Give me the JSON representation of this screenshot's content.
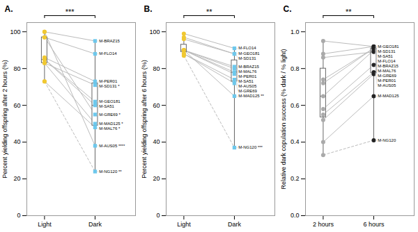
{
  "chart_data": [
    {
      "type": "paired",
      "title": "A.",
      "ylabel": "Percent yielding offspring after 2 hours (%)",
      "categories": [
        "Light",
        "Dark"
      ],
      "colors": [
        "#F0C832",
        "#6DC8EC"
      ],
      "markers": [
        "circle",
        "square"
      ],
      "ylim": [
        0,
        105
      ],
      "yticks": [
        0,
        20,
        40,
        60,
        80,
        100
      ],
      "grid": false,
      "series": [
        {
          "name": "M-BRAZ15",
          "values": [
            100,
            95
          ],
          "color": "#BBBBBB",
          "line_style": "solid"
        },
        {
          "name": "M-FLO14",
          "values": [
            97,
            88
          ],
          "color": "#BBBBBB",
          "line_style": "solid"
        },
        {
          "name": "M-PER01",
          "values": [
            86,
            73
          ],
          "color": "#BBBBBB",
          "line_style": "solid"
        },
        {
          "name": "M-SD131",
          "values": [
            83,
            71
          ],
          "color": "#BBBBBB",
          "line_style": "solid",
          "annotation": "*"
        },
        {
          "name": "M-GEO181",
          "values": [
            85,
            62
          ],
          "color": "#BBBBBB",
          "line_style": "solid"
        },
        {
          "name": "M-SA51",
          "values": [
            85,
            60
          ],
          "color": "#BBBBBB",
          "line_style": "solid"
        },
        {
          "name": "M-GRE69",
          "values": [
            97,
            55
          ],
          "color": "#BBBBBB",
          "line_style": "solid",
          "annotation": "*"
        },
        {
          "name": "M-MAD125",
          "values": [
            83,
            50
          ],
          "color": "#BBBBBB",
          "line_style": "solid",
          "annotation": "*"
        },
        {
          "name": "M-MAL76",
          "values": [
            73,
            48
          ],
          "color": "#BBBBBB",
          "line_style": "solid",
          "annotation": "*"
        },
        {
          "name": "M-AUS05",
          "values": [
            100,
            38
          ],
          "color": "#BBBBBB",
          "line_style": "solid",
          "annotation": "****"
        },
        {
          "name": "M-NG120",
          "values": [
            73,
            24
          ],
          "color": "#BBBBBB",
          "line_style": "dashed",
          "annotation": "**"
        }
      ],
      "boxes": [
        {
          "min": 73,
          "q1": 83,
          "median": 85,
          "q3": 97,
          "max": 100,
          "color": "#666666"
        },
        {
          "min": 24,
          "q1": 49,
          "median": 60,
          "q3": 72,
          "max": 95,
          "color": "#666666"
        }
      ],
      "annotations": [
        {
          "text": "***",
          "from": "Light",
          "to": "Dark"
        }
      ]
    },
    {
      "type": "paired",
      "title": "B.",
      "ylabel": "Percent yielding offspring after 6 hours (%)",
      "categories": [
        "Light",
        "Dark"
      ],
      "colors": [
        "#F0C832",
        "#6DC8EC"
      ],
      "markers": [
        "circle",
        "square"
      ],
      "ylim": [
        0,
        105
      ],
      "yticks": [
        0,
        20,
        40,
        60,
        80,
        100
      ],
      "grid": false,
      "series": [
        {
          "name": "M-FLO14",
          "values": [
            99,
            91
          ],
          "color": "#BBBBBB",
          "line_style": "solid"
        },
        {
          "name": "M-GEO181",
          "values": [
            97,
            88
          ],
          "color": "#BBBBBB",
          "line_style": "solid"
        },
        {
          "name": "M-SD131",
          "values": [
            96,
            88
          ],
          "color": "#BBBBBB",
          "line_style": "solid"
        },
        {
          "name": "M-BRAZ15",
          "values": [
            90,
            81
          ],
          "color": "#BBBBBB",
          "line_style": "solid"
        },
        {
          "name": "M-MAL76",
          "values": [
            90,
            80
          ],
          "color": "#BBBBBB",
          "line_style": "solid"
        },
        {
          "name": "M-PER01",
          "values": [
            90,
            78
          ],
          "color": "#BBBBBB",
          "line_style": "solid"
        },
        {
          "name": "M-SA51",
          "values": [
            90,
            77
          ],
          "color": "#BBBBBB",
          "line_style": "solid"
        },
        {
          "name": "M-AUS05",
          "values": [
            88,
            74
          ],
          "color": "#BBBBBB",
          "line_style": "solid"
        },
        {
          "name": "M-GRE69",
          "values": [
            88,
            72
          ],
          "color": "#BBBBBB",
          "line_style": "solid"
        },
        {
          "name": "M-MAD125",
          "values": [
            90,
            65
          ],
          "color": "#BBBBBB",
          "line_style": "solid",
          "annotation": "**"
        },
        {
          "name": "M-NG120",
          "values": [
            87,
            37
          ],
          "color": "#BBBBBB",
          "line_style": "dashed",
          "annotation": "***"
        }
      ],
      "boxes": [
        {
          "min": 87,
          "q1": 89,
          "median": 90,
          "q3": 93,
          "max": 99,
          "color": "#666666"
        },
        {
          "min": 37,
          "q1": 73,
          "median": 78,
          "q3": 84.5,
          "max": 91,
          "color": "#666666"
        }
      ],
      "annotations": [
        {
          "text": "**",
          "from": "Light",
          "to": "Dark"
        }
      ]
    },
    {
      "type": "paired",
      "title": "C.",
      "ylabel": "Relative dark copulation success (% dark / % light)",
      "categories": [
        "2 hours",
        "6 hours"
      ],
      "colors": [
        "#AAAAAA",
        "#222222"
      ],
      "markers": [
        "circle",
        "circle"
      ],
      "ylim": [
        0,
        1.05
      ],
      "yticks": [
        {
          "value": 0.0,
          "label": "0.0"
        },
        0.2,
        0.4,
        0.6,
        0.8,
        {
          "value": 1.0,
          "label": "1.0"
        }
      ],
      "grid": false,
      "series": [
        {
          "name": "M-GEO181",
          "values": [
            0.95,
            0.92
          ],
          "color": "#BBBBBB",
          "line_style": "solid"
        },
        {
          "name": "M-SD131",
          "values": [
            0.88,
            0.92
          ],
          "color": "#BBBBBB",
          "line_style": "solid"
        },
        {
          "name": "M-MAL76",
          "values": [
            0.86,
            0.89
          ],
          "color": "#BBBBBB",
          "line_style": "solid"
        },
        {
          "name": "M-SA51",
          "values": [
            0.74,
            0.91
          ],
          "color": "#BBBBBB",
          "line_style": "solid"
        },
        {
          "name": "M-FLO14",
          "values": [
            0.72,
            0.91
          ],
          "color": "#BBBBBB",
          "line_style": "solid"
        },
        {
          "name": "M-BRAZ15",
          "values": [
            0.65,
            0.9
          ],
          "color": "#BBBBBB",
          "line_style": "solid"
        },
        {
          "name": "M-GRE69",
          "values": [
            0.58,
            0.82
          ],
          "color": "#BBBBBB",
          "line_style": "solid"
        },
        {
          "name": "M-PER01",
          "values": [
            0.55,
            0.78
          ],
          "color": "#BBBBBB",
          "line_style": "solid"
        },
        {
          "name": "M-AUS05",
          "values": [
            0.52,
            0.77
          ],
          "color": "#BBBBBB",
          "line_style": "solid"
        },
        {
          "name": "M-MAD125",
          "values": [
            0.4,
            0.65
          ],
          "color": "#BBBBBB",
          "line_style": "solid"
        },
        {
          "name": "M-NG120",
          "values": [
            0.33,
            0.41
          ],
          "color": "#BBBBBB",
          "line_style": "dashed"
        }
      ],
      "boxes": [
        {
          "min": 0.33,
          "q1": 0.535,
          "median": 0.65,
          "q3": 0.8,
          "max": 0.95,
          "color": "#666666"
        },
        {
          "min": 0.41,
          "q1": 0.775,
          "median": 0.89,
          "q3": 0.91,
          "max": 0.92,
          "color": "#666666"
        }
      ],
      "annotations": [
        {
          "text": "**",
          "from": "2 hours",
          "to": "6 hours"
        }
      ]
    }
  ]
}
